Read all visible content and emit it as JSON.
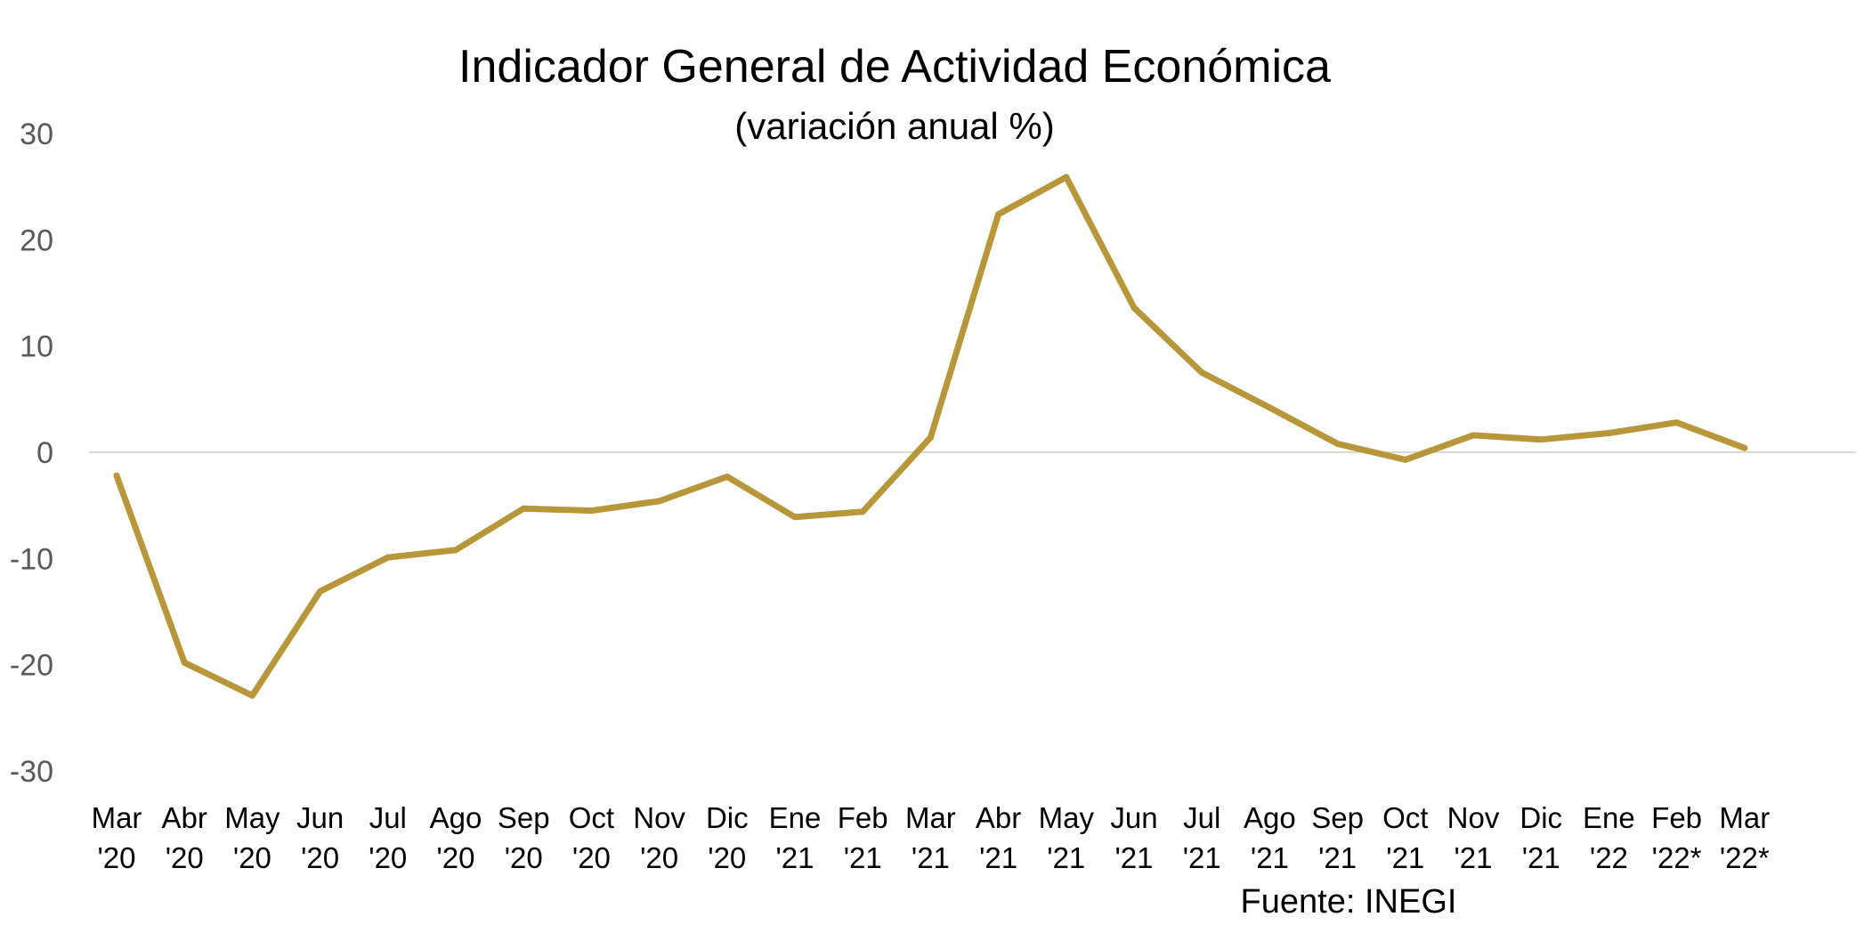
{
  "chart_data": {
    "type": "line",
    "title": "Indicador General de Actividad Económica",
    "subtitle": "(variación anual %)",
    "source": "Fuente: INEGI",
    "xlabel": "",
    "ylabel": "",
    "ylim": [
      -30,
      30
    ],
    "yticks": [
      30,
      20,
      10,
      0,
      -10,
      -20,
      -30
    ],
    "grid": false,
    "zero_line": true,
    "line_color": "#B8963A",
    "categories": [
      [
        "Mar",
        "'20"
      ],
      [
        "Abr",
        "'20"
      ],
      [
        "May",
        "'20"
      ],
      [
        "Jun",
        "'20"
      ],
      [
        "Jul",
        "'20"
      ],
      [
        "Ago",
        "'20"
      ],
      [
        "Sep",
        "'20"
      ],
      [
        "Oct",
        "'20"
      ],
      [
        "Nov",
        "'20"
      ],
      [
        "Dic",
        "'20"
      ],
      [
        "Ene",
        "'21"
      ],
      [
        "Feb",
        "'21"
      ],
      [
        "Mar",
        "'21"
      ],
      [
        "Abr",
        "'21"
      ],
      [
        "May",
        "'21"
      ],
      [
        "Jun",
        "'21"
      ],
      [
        "Jul",
        "'21"
      ],
      [
        "Ago",
        "'21"
      ],
      [
        "Sep",
        "'21"
      ],
      [
        "Oct",
        "'21"
      ],
      [
        "Nov",
        "'21"
      ],
      [
        "Dic",
        "'21"
      ],
      [
        "Ene",
        "'22"
      ],
      [
        "Feb",
        "'22*"
      ],
      [
        "Mar",
        "'22*"
      ]
    ],
    "values": [
      -2.2,
      -19.8,
      -22.9,
      -13.1,
      -9.9,
      -9.2,
      -5.3,
      -5.5,
      -4.6,
      -2.3,
      -6.1,
      -5.6,
      1.4,
      22.4,
      25.9,
      13.6,
      7.5,
      4.2,
      0.8,
      -0.7,
      1.6,
      1.2,
      1.8,
      2.8,
      0.4
    ]
  }
}
